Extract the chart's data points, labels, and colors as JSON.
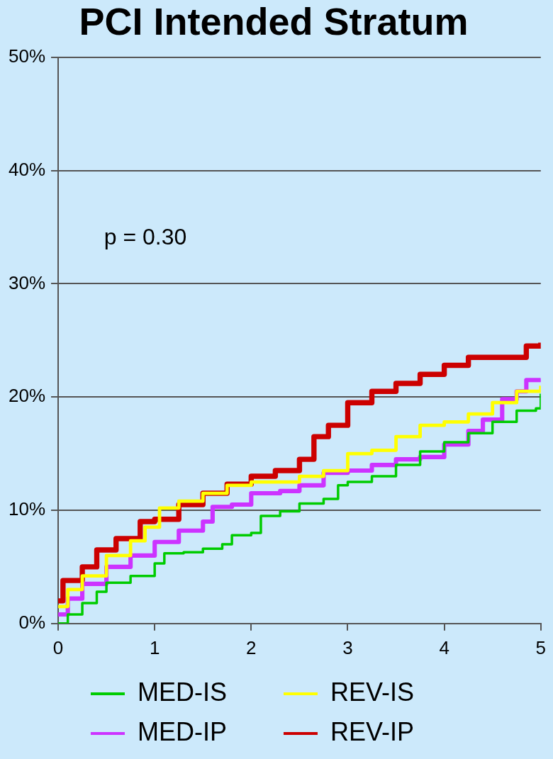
{
  "chart_data": {
    "type": "step",
    "title": "PCI Intended Stratum",
    "xlim": [
      0,
      5
    ],
    "xticks": [
      0,
      1,
      2,
      3,
      4,
      5
    ],
    "ylim": [
      0,
      50
    ],
    "yticks": [
      {
        "value": 0,
        "label": "0%"
      },
      {
        "value": 10,
        "label": "10%"
      },
      {
        "value": 20,
        "label": "20%"
      },
      {
        "value": 30,
        "label": "30%"
      },
      {
        "value": 40,
        "label": "40%"
      },
      {
        "value": 50,
        "label": "50%"
      }
    ],
    "grid": "y",
    "legend": "bottom",
    "marker": "none",
    "annotations": [
      "p = 0.30"
    ],
    "series": [
      {
        "name": "MED-IS",
        "color": "#00cc00",
        "x": [
          0,
          0.1,
          0.25,
          0.4,
          0.5,
          0.75,
          1.0,
          1.1,
          1.3,
          1.5,
          1.7,
          1.8,
          2.0,
          2.1,
          2.3,
          2.5,
          2.75,
          2.9,
          3.0,
          3.25,
          3.5,
          3.75,
          4.0,
          4.25,
          4.5,
          4.75,
          4.95,
          5.0
        ],
        "values": [
          0,
          0.8,
          1.8,
          2.8,
          3.6,
          4.2,
          5.3,
          6.2,
          6.3,
          6.6,
          7.0,
          7.8,
          8.0,
          9.5,
          9.9,
          10.6,
          11.0,
          12.2,
          12.5,
          13.0,
          14.0,
          15.2,
          16.0,
          16.8,
          17.8,
          18.8,
          19.0,
          20.3
        ]
      },
      {
        "name": "REV-IS",
        "color": "#ffff00",
        "x": [
          0,
          0.1,
          0.25,
          0.5,
          0.75,
          0.9,
          1.05,
          1.25,
          1.5,
          1.75,
          2.0,
          2.5,
          2.75,
          3.0,
          3.25,
          3.5,
          3.75,
          4.0,
          4.25,
          4.5,
          4.75,
          5.0
        ],
        "values": [
          1.5,
          3,
          4.2,
          6.0,
          7.3,
          8.5,
          10.2,
          10.8,
          11.5,
          12.2,
          12.5,
          13.0,
          13.5,
          15.0,
          15.3,
          16.5,
          17.5,
          17.8,
          18.5,
          19.5,
          20.5,
          21.0
        ]
      },
      {
        "name": "MED-IP",
        "color": "#cc33ff",
        "x": [
          0,
          0.1,
          0.25,
          0.5,
          0.75,
          1.0,
          1.25,
          1.5,
          1.6,
          1.8,
          2.0,
          2.3,
          2.5,
          2.75,
          3.0,
          3.25,
          3.5,
          3.75,
          4.0,
          4.25,
          4.4,
          4.6,
          4.75,
          4.85,
          5.0
        ],
        "values": [
          0.8,
          2.2,
          3.5,
          5.0,
          6.0,
          7.2,
          8.2,
          9.0,
          10.3,
          10.5,
          11.5,
          11.7,
          12.2,
          13.3,
          13.5,
          14.0,
          14.5,
          14.7,
          15.8,
          17.0,
          18.0,
          19.8,
          20.5,
          21.5,
          21.6
        ]
      },
      {
        "name": "REV-IP",
        "color": "#cc0000",
        "x": [
          0,
          0.05,
          0.25,
          0.4,
          0.6,
          0.85,
          1.0,
          1.25,
          1.5,
          1.75,
          2.0,
          2.25,
          2.5,
          2.65,
          2.8,
          3.0,
          3.25,
          3.5,
          3.75,
          4.0,
          4.25,
          4.5,
          4.75,
          4.85,
          5.0
        ],
        "values": [
          2,
          3.8,
          5.0,
          6.5,
          7.5,
          9.0,
          9.2,
          10.5,
          11.5,
          12.3,
          13.0,
          13.5,
          14.5,
          16.5,
          17.5,
          19.5,
          20.5,
          21.2,
          22.0,
          22.8,
          23.5,
          23.5,
          23.5,
          24.5,
          24.8
        ]
      }
    ]
  }
}
